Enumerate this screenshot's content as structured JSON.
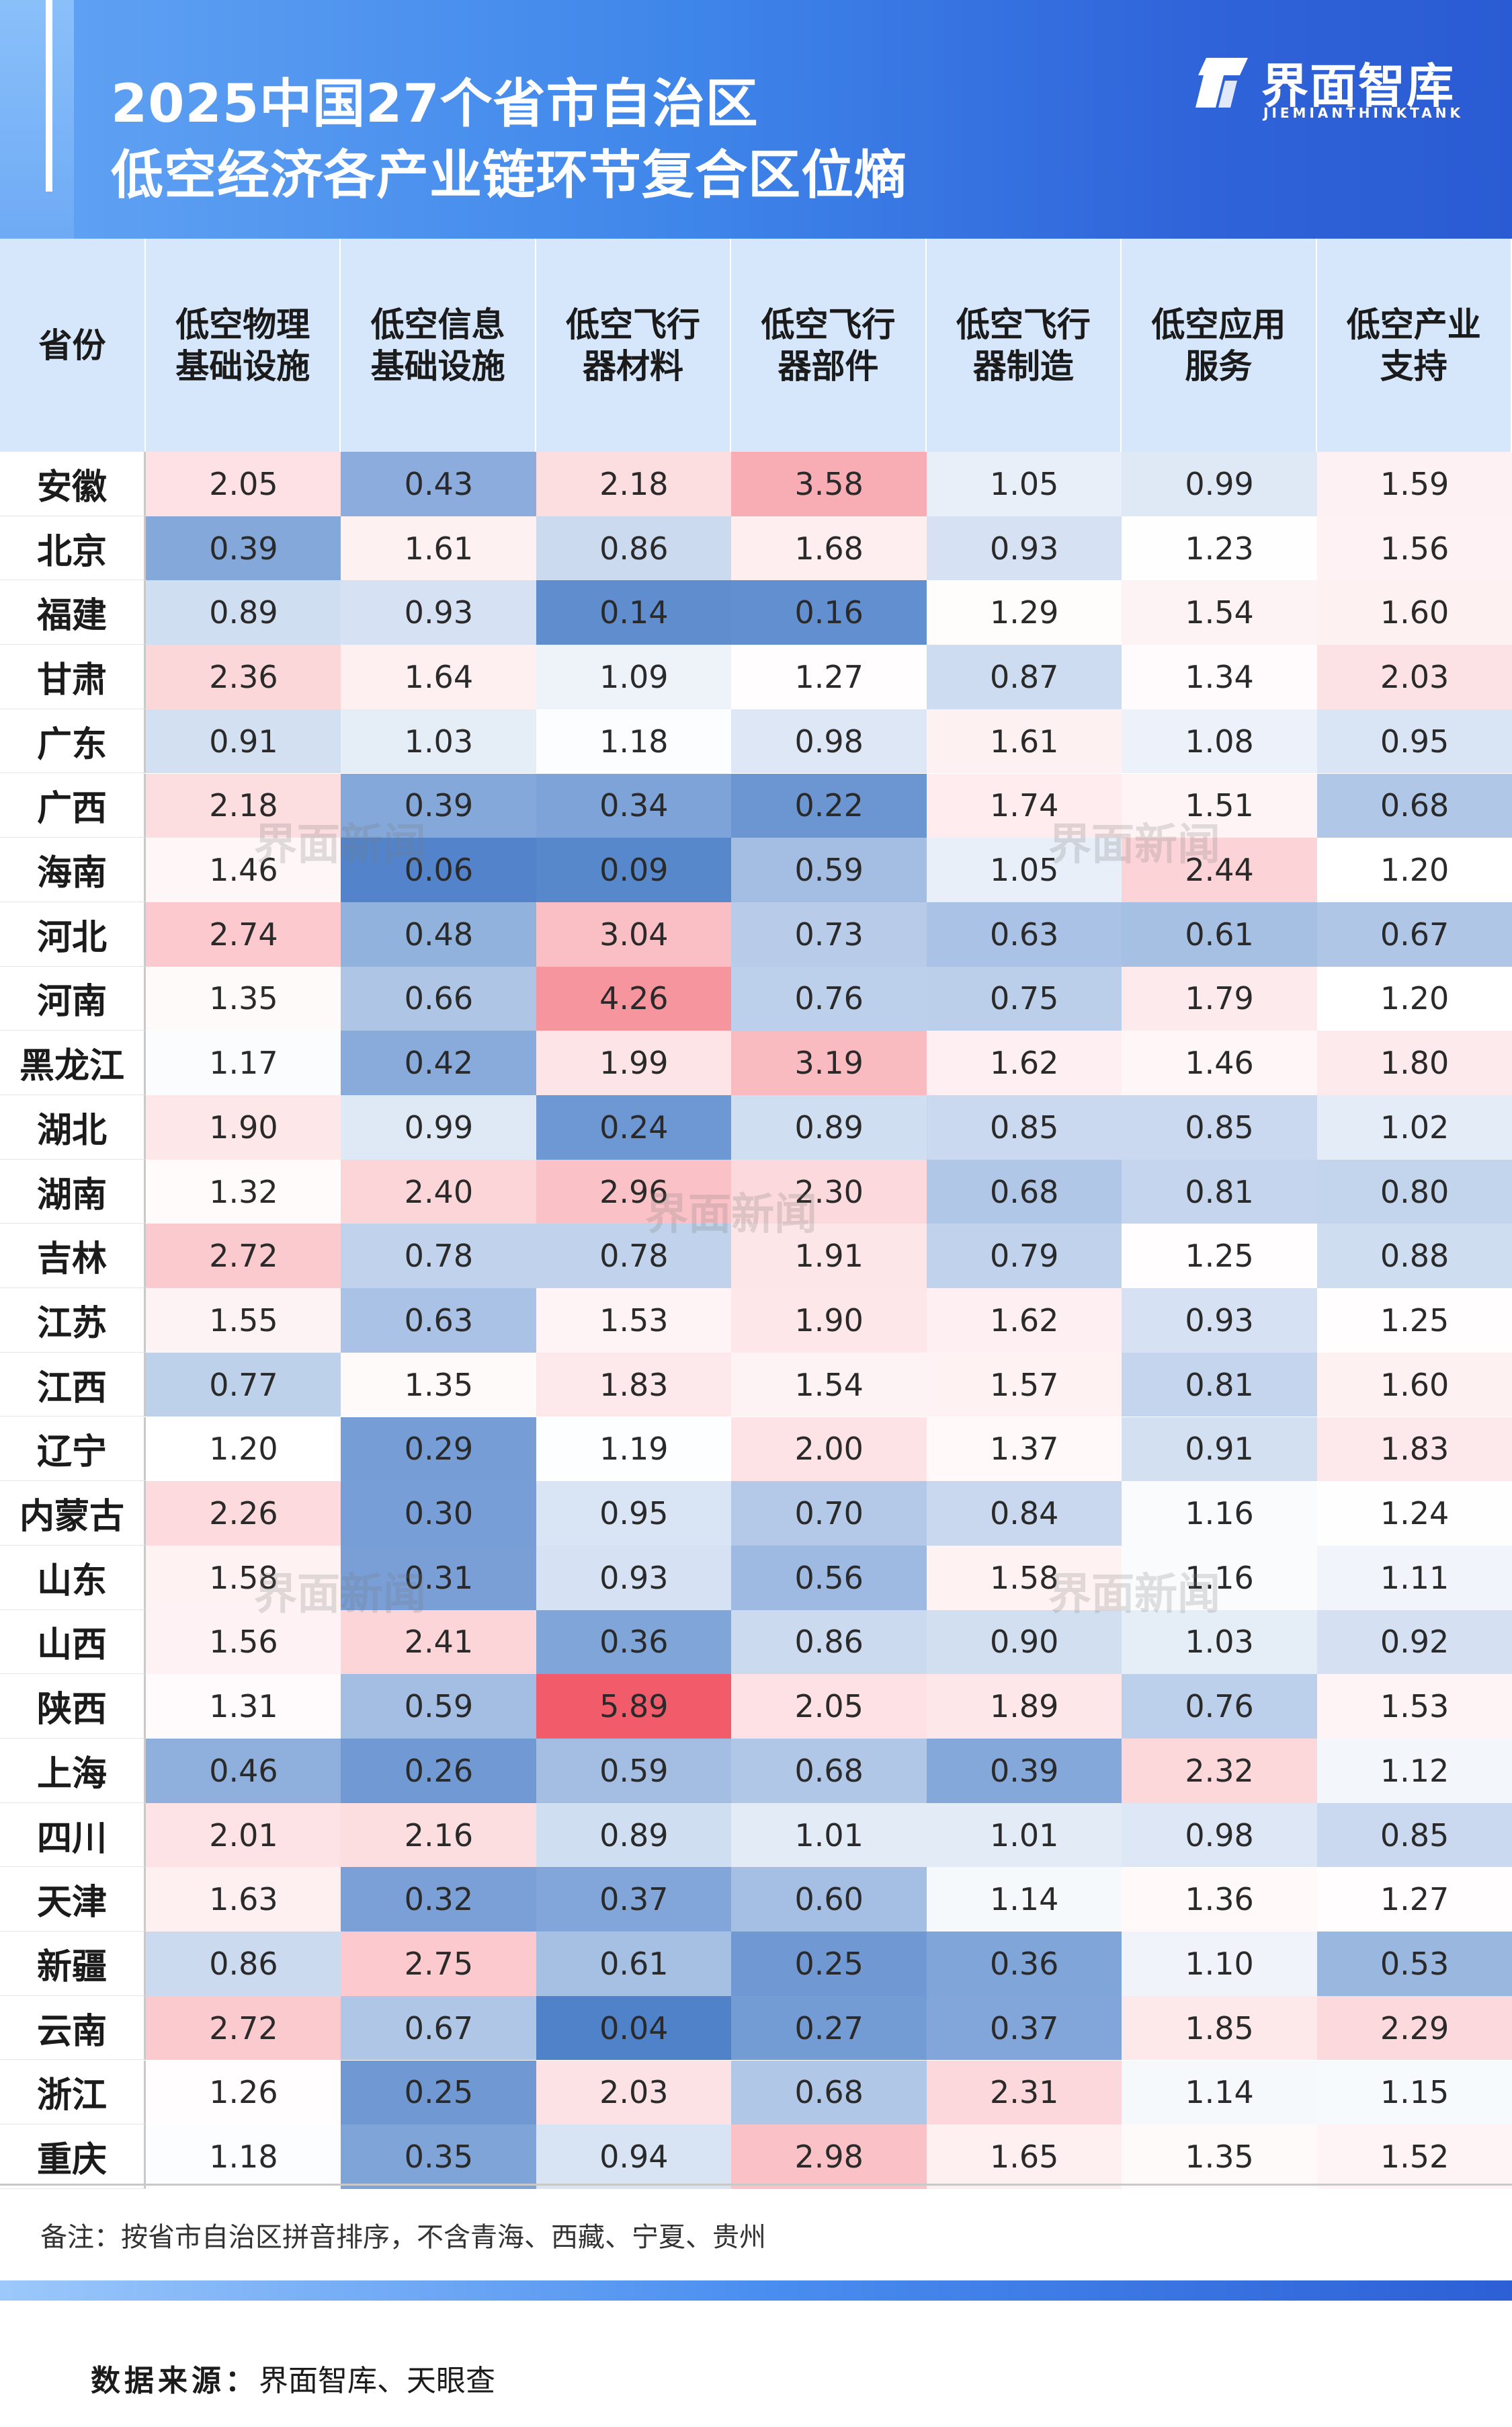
{
  "header": {
    "title_line1": "2025中国27个省市自治区",
    "title_line2": "低空经济各产业链环节复合区位熵",
    "logo_cn": "界面智库",
    "logo_en": "JIEMIANTHINKTANK",
    "logo_icon": "jiemian-logo-icon"
  },
  "watermark_text": "界面新闻",
  "colors": {
    "low": "#4a7ec8",
    "neutral": "#ffffff",
    "high": "#f25c6a",
    "header_bg": "#d6e7fb",
    "brand_blue": "#2a5bd4"
  },
  "chart_data": {
    "type": "table",
    "title": "2025中国27个省市自治区低空经济各产业链环节复合区位熵",
    "row_header": "省份",
    "columns": [
      "低空物理基础设施",
      "低空信息基础设施",
      "低空飞行器材料",
      "低空飞行器部件",
      "低空飞行器制造",
      "低空应用服务",
      "低空产业支持"
    ],
    "column_lines": [
      [
        "低空物理",
        "基础设施"
      ],
      [
        "低空信息",
        "基础设施"
      ],
      [
        "低空飞行",
        "器材料"
      ],
      [
        "低空飞行",
        "器部件"
      ],
      [
        "低空飞行",
        "器制造"
      ],
      [
        "低空应用",
        "服务"
      ],
      [
        "低空产业",
        "支持"
      ]
    ],
    "rows": [
      {
        "province": "安徽",
        "values": [
          "2.05",
          "0.43",
          "2.18",
          "3.58",
          "1.05",
          "0.99",
          "1.59"
        ]
      },
      {
        "province": "北京",
        "values": [
          "0.39",
          "1.61",
          "0.86",
          "1.68",
          "0.93",
          "1.23",
          "1.56"
        ]
      },
      {
        "province": "福建",
        "values": [
          "0.89",
          "0.93",
          "0.14",
          "0.16",
          "1.29",
          "1.54",
          "1.60"
        ]
      },
      {
        "province": "甘肃",
        "values": [
          "2.36",
          "1.64",
          "1.09",
          "1.27",
          "0.87",
          "1.34",
          "2.03"
        ]
      },
      {
        "province": "广东",
        "values": [
          "0.91",
          "1.03",
          "1.18",
          "0.98",
          "1.61",
          "1.08",
          "0.95"
        ]
      },
      {
        "province": "广西",
        "values": [
          "2.18",
          "0.39",
          "0.34",
          "0.22",
          "1.74",
          "1.51",
          "0.68"
        ]
      },
      {
        "province": "海南",
        "values": [
          "1.46",
          "0.06",
          "0.09",
          "0.59",
          "1.05",
          "2.44",
          "1.20"
        ]
      },
      {
        "province": "河北",
        "values": [
          "2.74",
          "0.48",
          "3.04",
          "0.73",
          "0.63",
          "0.61",
          "0.67"
        ]
      },
      {
        "province": "河南",
        "values": [
          "1.35",
          "0.66",
          "4.26",
          "0.76",
          "0.75",
          "1.79",
          "1.20"
        ]
      },
      {
        "province": "黑龙江",
        "values": [
          "1.17",
          "0.42",
          "1.99",
          "3.19",
          "1.62",
          "1.46",
          "1.80"
        ]
      },
      {
        "province": "湖北",
        "values": [
          "1.90",
          "0.99",
          "0.24",
          "0.89",
          "0.85",
          "0.85",
          "1.02"
        ]
      },
      {
        "province": "湖南",
        "values": [
          "1.32",
          "2.40",
          "2.96",
          "2.30",
          "0.68",
          "0.81",
          "0.80"
        ]
      },
      {
        "province": "吉林",
        "values": [
          "2.72",
          "0.78",
          "0.78",
          "1.91",
          "0.79",
          "1.25",
          "0.88"
        ]
      },
      {
        "province": "江苏",
        "values": [
          "1.55",
          "0.63",
          "1.53",
          "1.90",
          "1.62",
          "0.93",
          "1.25"
        ]
      },
      {
        "province": "江西",
        "values": [
          "0.77",
          "1.35",
          "1.83",
          "1.54",
          "1.57",
          "0.81",
          "1.60"
        ]
      },
      {
        "province": "辽宁",
        "values": [
          "1.20",
          "0.29",
          "1.19",
          "2.00",
          "1.37",
          "0.91",
          "1.83"
        ]
      },
      {
        "province": "内蒙古",
        "values": [
          "2.26",
          "0.30",
          "0.95",
          "0.70",
          "0.84",
          "1.16",
          "1.24"
        ]
      },
      {
        "province": "山东",
        "values": [
          "1.58",
          "0.31",
          "0.93",
          "0.56",
          "1.58",
          "1.16",
          "1.11"
        ]
      },
      {
        "province": "山西",
        "values": [
          "1.56",
          "2.41",
          "0.36",
          "0.86",
          "0.90",
          "1.03",
          "0.92"
        ]
      },
      {
        "province": "陕西",
        "values": [
          "1.31",
          "0.59",
          "5.89",
          "2.05",
          "1.89",
          "0.76",
          "1.53"
        ]
      },
      {
        "province": "上海",
        "values": [
          "0.46",
          "0.26",
          "0.59",
          "0.68",
          "0.39",
          "2.32",
          "1.12"
        ]
      },
      {
        "province": "四川",
        "values": [
          "2.01",
          "2.16",
          "0.89",
          "1.01",
          "1.01",
          "0.98",
          "0.85"
        ]
      },
      {
        "province": "天津",
        "values": [
          "1.63",
          "0.32",
          "0.37",
          "0.60",
          "1.14",
          "1.36",
          "1.27"
        ]
      },
      {
        "province": "新疆",
        "values": [
          "0.86",
          "2.75",
          "0.61",
          "0.25",
          "0.36",
          "1.10",
          "0.53"
        ]
      },
      {
        "province": "云南",
        "values": [
          "2.72",
          "0.67",
          "0.04",
          "0.27",
          "0.37",
          "1.85",
          "2.29"
        ]
      },
      {
        "province": "浙江",
        "values": [
          "1.26",
          "0.25",
          "2.03",
          "0.68",
          "2.31",
          "1.14",
          "1.15"
        ]
      },
      {
        "province": "重庆",
        "values": [
          "1.18",
          "0.35",
          "0.94",
          "2.98",
          "1.65",
          "1.35",
          "1.52"
        ]
      }
    ],
    "color_scale": {
      "low_color": "#4a7ec8",
      "mid_color": "#ffffff",
      "high_color": "#f25c6a",
      "mid_value": 1.2,
      "min_value": 0.0,
      "max_value": 5.89
    }
  },
  "note": "备注：按省市自治区拼音排序，不含青海、西藏、宁夏、贵州",
  "source_label": "数据来源：",
  "source_value": "界面智库、天眼查"
}
